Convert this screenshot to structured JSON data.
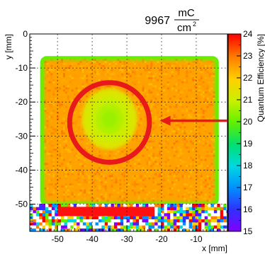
{
  "chart_data": {
    "type": "heatmap",
    "title": {
      "value": "9967",
      "unit_numerator": "mC",
      "unit_denominator": "cm",
      "unit_denominator_exponent": "2"
    },
    "xlabel": "x [mm]",
    "ylabel": "y [mm]",
    "zlabel": "Quantum Efficiency [%]",
    "xlim": [
      -58,
      -1
    ],
    "ylim": [
      -58,
      0
    ],
    "zlim": [
      15,
      24
    ],
    "x_ticks": [
      -50,
      -40,
      -30,
      -20,
      -10
    ],
    "y_ticks": [
      0,
      -10,
      -20,
      -30,
      -40,
      -50
    ],
    "z_ticks": [
      15,
      16,
      17,
      18,
      19,
      20,
      21,
      22,
      23,
      24
    ],
    "x_tick_labels": [
      "-50",
      "-40",
      "-30",
      "-20",
      "-10"
    ],
    "y_tick_labels": [
      "0",
      "-10",
      "-20",
      "-30",
      "-40",
      "-50"
    ],
    "z_tick_labels": [
      "15",
      "16",
      "17",
      "18",
      "19",
      "20",
      "21",
      "22",
      "23",
      "24"
    ],
    "grid": true,
    "colormap": "rainbow",
    "active_region": {
      "x": [
        -55,
        -3.5
      ],
      "y": [
        -50.5,
        -6.5
      ],
      "baseline_qe": 22.5,
      "edge_qe": 20
    },
    "depletion_spot": {
      "center_x": -35,
      "center_y": -25,
      "radius_mm": 8,
      "min_qe": 20.5
    },
    "annotations": [
      {
        "type": "circle",
        "center_x": -35,
        "center_y": -26,
        "radius_mm": 11.5,
        "color": "#e8191a"
      },
      {
        "type": "arrow",
        "from_x": -1,
        "from_y": -25.5,
        "to_x": -20.5,
        "to_y": -25.5,
        "color": "#e8191a"
      }
    ],
    "noise_band": {
      "y": [
        -58,
        -50.5
      ],
      "x": [
        -58,
        -1
      ]
    },
    "saturated_strip": {
      "x": [
        -50,
        -22
      ],
      "y": [
        -53.5,
        -50.8
      ]
    }
  }
}
